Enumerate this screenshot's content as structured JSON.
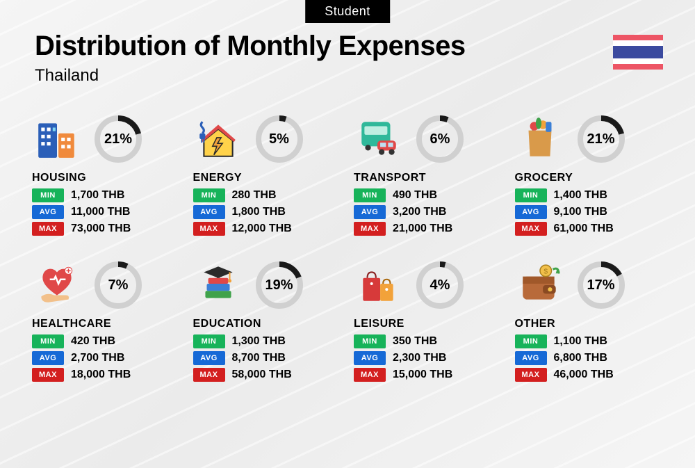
{
  "badge": "Student",
  "title": "Distribution of Monthly Expenses",
  "subtitle": "Thailand",
  "currency": "THB",
  "flag_colors": {
    "red": "#ed5565",
    "white": "#ffffff",
    "blue": "#3b4a9f"
  },
  "stat_colors": {
    "min": "#17b35a",
    "avg": "#1669d6",
    "max": "#d31f1f"
  },
  "ring": {
    "track_color": "#d0d0d0",
    "fill_color": "#1a1a1a",
    "stroke_width": 8
  },
  "labels": {
    "min": "MIN",
    "avg": "AVG",
    "max": "MAX"
  },
  "categories": [
    {
      "key": "housing",
      "name": "HOUSING",
      "percent": 21,
      "min": "1,700",
      "avg": "11,000",
      "max": "73,000",
      "icon": "buildings"
    },
    {
      "key": "energy",
      "name": "ENERGY",
      "percent": 5,
      "min": "280",
      "avg": "1,800",
      "max": "12,000",
      "icon": "house-energy"
    },
    {
      "key": "transport",
      "name": "TRANSPORT",
      "percent": 6,
      "min": "490",
      "avg": "3,200",
      "max": "21,000",
      "icon": "bus-car"
    },
    {
      "key": "grocery",
      "name": "GROCERY",
      "percent": 21,
      "min": "1,400",
      "avg": "9,100",
      "max": "61,000",
      "icon": "grocery-bag"
    },
    {
      "key": "healthcare",
      "name": "HEALTHCARE",
      "percent": 7,
      "min": "420",
      "avg": "2,700",
      "max": "18,000",
      "icon": "heart-hand"
    },
    {
      "key": "education",
      "name": "EDUCATION",
      "percent": 19,
      "min": "1,300",
      "avg": "8,700",
      "max": "58,000",
      "icon": "grad-books"
    },
    {
      "key": "leisure",
      "name": "LEISURE",
      "percent": 4,
      "min": "350",
      "avg": "2,300",
      "max": "15,000",
      "icon": "shopping-bags"
    },
    {
      "key": "other",
      "name": "OTHER",
      "percent": 17,
      "min": "1,100",
      "avg": "6,800",
      "max": "46,000",
      "icon": "wallet"
    }
  ]
}
